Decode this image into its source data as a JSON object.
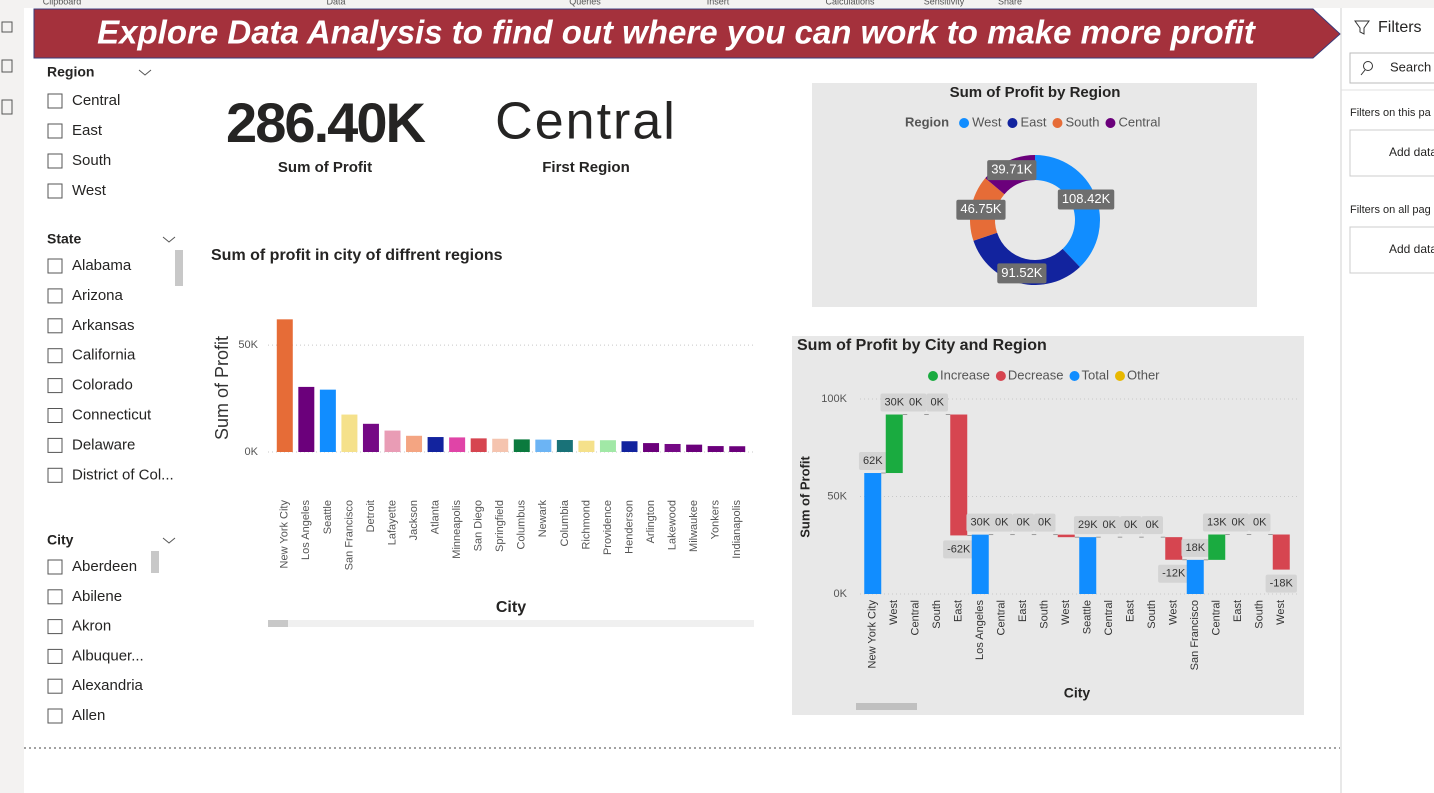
{
  "ribbon": [
    "Clipboard",
    "Data",
    "Queries",
    "Insert",
    "Calculations",
    "Sensitivity",
    "Share"
  ],
  "banner": "Explore Data Analysis to find out where you can work to make more profit",
  "slicers": [
    {
      "title": "Region",
      "items": [
        "Central",
        "East",
        "South",
        "West"
      ]
    },
    {
      "title": "State",
      "items": [
        "Alabama",
        "Arizona",
        "Arkansas",
        "California",
        "Colorado",
        "Connecticut",
        "Delaware",
        "District of Col..."
      ]
    },
    {
      "title": "City",
      "items": [
        "Aberdeen",
        "Abilene",
        "Akron",
        "Albuquer...",
        "Alexandria",
        "Allen"
      ]
    }
  ],
  "cards": [
    {
      "value": "286.40K",
      "label": "Sum of Profit"
    },
    {
      "value": "Central",
      "label": "First Region"
    }
  ],
  "filters_pane": {
    "title": "Filters",
    "search": "Search",
    "sections": [
      {
        "label": "Filters on this pa",
        "button": "Add data"
      },
      {
        "label": "Filters on all pag",
        "button": "Add data"
      }
    ]
  },
  "chart_data": [
    {
      "type": "bar",
      "title": "Sum of profit in city of diffrent regions",
      "x_label": "City",
      "y_label": "Sum of Profit",
      "categories": [
        "New York City",
        "Los Angeles",
        "Seattle",
        "San Francisco",
        "Detroit",
        "Lafayette",
        "Jackson",
        "Atlanta",
        "Minneapolis",
        "San Diego",
        "Springfield",
        "Columbus",
        "Newark",
        "Columbia",
        "Richmond",
        "Providence",
        "Henderson",
        "Arlington",
        "Lakewood",
        "Milwaukee",
        "Yonkers",
        "Indianapolis"
      ],
      "values": [
        62037,
        30441,
        29156,
        17507,
        13181,
        10018,
        7581,
        6994,
        6824,
        6377,
        6200,
        5897,
        5794,
        5606,
        5284,
        5506,
        5037,
        4169,
        3748,
        3439,
        2767,
        2697
      ],
      "colors": [
        "#e66c37",
        "#6b007b",
        "#118dff",
        "#f5e18b",
        "#750985",
        "#e99cb5",
        "#f4a582",
        "#12239e",
        "#e044a7",
        "#d64550",
        "#f5c4af",
        "#0b7a3e",
        "#6cb4f4",
        "#197278",
        "#f5e18b",
        "#a1e8a6",
        "#12239e",
        "#6b007b",
        "#750985",
        "#6b007b",
        "#6b007b",
        "#6b007b"
      ],
      "ylim": [
        0,
        65000
      ],
      "yticks": [
        {
          "value": 0,
          "label": "0K"
        },
        {
          "value": 50000,
          "label": "50K"
        }
      ],
      "grid": true
    },
    {
      "type": "donut",
      "title": "Sum of Profit by Region",
      "legend_title": "Region",
      "categories": [
        "West",
        "East",
        "South",
        "Central"
      ],
      "values": [
        108418,
        91522,
        46749,
        39706
      ],
      "value_labels": [
        "108.42K",
        "91.52K",
        "46.75K",
        "39.71K"
      ],
      "colors": [
        "#118dff",
        "#12239e",
        "#e66c37",
        "#6b007b"
      ]
    },
    {
      "type": "waterfall",
      "title": "Sum of Profit by City and Region",
      "x_label": "City",
      "y_label": "Sum of Profit",
      "legend": [
        {
          "name": "Increase",
          "color": "#1aab40"
        },
        {
          "name": "Decrease",
          "color": "#d64550"
        },
        {
          "name": "Total",
          "color": "#118dff"
        },
        {
          "name": "Other",
          "color": "#e8b800"
        }
      ],
      "categories": [
        "New York City",
        "West",
        "Central",
        "South",
        "East",
        "Los Angeles",
        "Central",
        "East",
        "South",
        "West",
        "Seattle",
        "Central",
        "East",
        "South",
        "West",
        "San Francisco",
        "Central",
        "East",
        "South",
        "West"
      ],
      "values": [
        62037,
        30000,
        0,
        0,
        -62000,
        30441,
        0,
        0,
        0,
        -1300,
        29156,
        0,
        0,
        0,
        -11600,
        17507,
        13000,
        0,
        0,
        -18000
      ],
      "value_labels": [
        "62K",
        "30K",
        "0K",
        "0K",
        "-62K",
        "30K",
        "0K",
        "0K",
        "0K",
        null,
        "29K",
        "0K",
        "0K",
        "0K",
        "-12K",
        "18K",
        "13K",
        "0K",
        "0K",
        "-18K"
      ],
      "ylim": [
        0,
        100000
      ],
      "yticks": [
        {
          "value": 0,
          "label": "0K"
        },
        {
          "value": 50000,
          "label": "50K"
        },
        {
          "value": 100000,
          "label": "100K"
        }
      ],
      "grid": true
    }
  ]
}
